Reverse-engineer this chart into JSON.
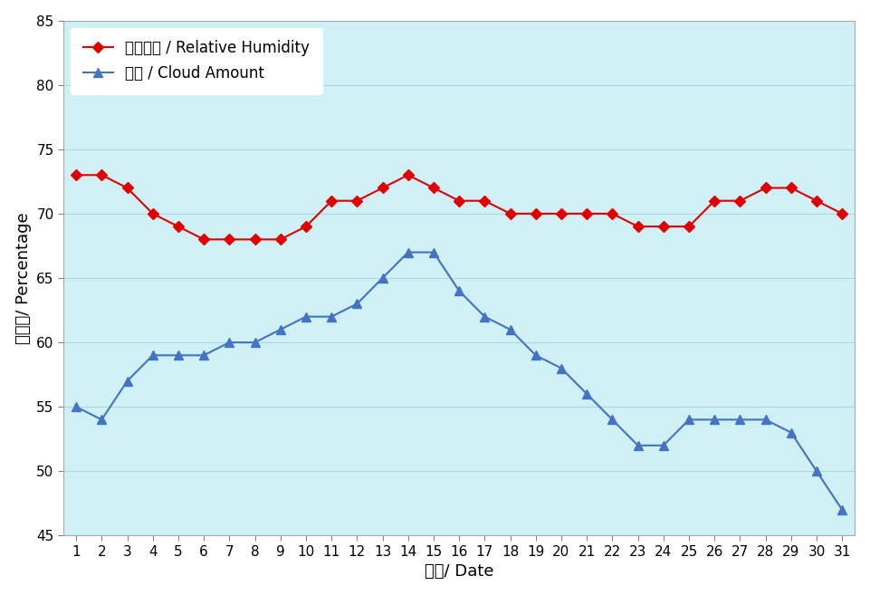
{
  "days": [
    1,
    2,
    3,
    4,
    5,
    6,
    7,
    8,
    9,
    10,
    11,
    12,
    13,
    14,
    15,
    16,
    17,
    18,
    19,
    20,
    21,
    22,
    23,
    24,
    25,
    26,
    27,
    28,
    29,
    30,
    31
  ],
  "humidity": [
    73,
    73,
    72,
    70,
    69,
    68,
    68,
    68,
    68,
    69,
    71,
    71,
    72,
    73,
    72,
    71,
    71,
    70,
    70,
    70,
    70,
    70,
    69,
    69,
    69,
    71,
    71,
    72,
    72,
    71,
    70
  ],
  "cloud": [
    55,
    54,
    57,
    59,
    59,
    59,
    60,
    60,
    61,
    62,
    62,
    63,
    65,
    67,
    67,
    64,
    62,
    61,
    59,
    58,
    56,
    54,
    52,
    52,
    54,
    54,
    54,
    54,
    53,
    50,
    47
  ],
  "humidity_color": "#e00000",
  "cloud_color": "#4472c4",
  "fig_bg": "#ffffff",
  "plot_bg": "#cff0f5",
  "grid_color": "#aed8e0",
  "ylabel": "百分比/ Percentage",
  "xlabel": "日期/ Date",
  "ylim": [
    45,
    85
  ],
  "yticks": [
    45,
    50,
    55,
    60,
    65,
    70,
    75,
    80,
    85
  ],
  "legend_humidity": "相對濕度 / Relative Humidity",
  "legend_cloud": "雲量 / Cloud Amount"
}
